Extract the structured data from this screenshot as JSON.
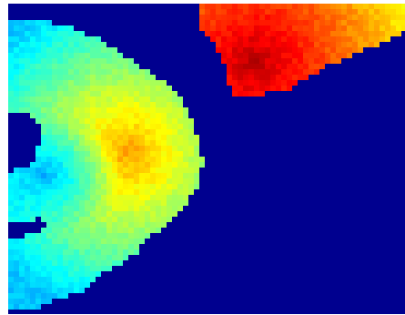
{
  "chart_data": {
    "type": "heatmap",
    "colormap": "jet",
    "background_color": "#00008f",
    "frame_color": "#ffffff",
    "value_range": [
      0,
      1
    ],
    "grid": false,
    "legend": "none",
    "title": "",
    "xlabel": "",
    "ylabel": "",
    "regions": [
      {
        "name": "left-lobe",
        "outline": [
          [
            0.0,
            0.06
          ],
          [
            0.06,
            0.05
          ],
          [
            0.15,
            0.07
          ],
          [
            0.24,
            0.12
          ],
          [
            0.31,
            0.18
          ],
          [
            0.38,
            0.24
          ],
          [
            0.43,
            0.29
          ],
          [
            0.46,
            0.36
          ],
          [
            0.48,
            0.44
          ],
          [
            0.49,
            0.51
          ],
          [
            0.48,
            0.58
          ],
          [
            0.45,
            0.65
          ],
          [
            0.4,
            0.71
          ],
          [
            0.35,
            0.76
          ],
          [
            0.32,
            0.81
          ],
          [
            0.25,
            0.86
          ],
          [
            0.18,
            0.93
          ],
          [
            0.07,
            0.98
          ],
          [
            0.0,
            0.99
          ]
        ],
        "holes": [
          [
            [
              0.0,
              0.35
            ],
            [
              0.05,
              0.36
            ],
            [
              0.09,
              0.4
            ],
            [
              0.08,
              0.45
            ],
            [
              0.06,
              0.52
            ],
            [
              0.0,
              0.54
            ]
          ],
          [
            [
              0.0,
              0.71
            ],
            [
              0.04,
              0.71
            ],
            [
              0.08,
              0.69
            ],
            [
              0.1,
              0.72
            ],
            [
              0.04,
              0.75
            ],
            [
              0.0,
              0.76
            ]
          ]
        ],
        "hot_spot": [
          0.3,
          0.48
        ],
        "value_low": 0.32,
        "value_high": 0.72,
        "cold_core": {
          "center": [
            0.09,
            0.55
          ],
          "radius": 0.2,
          "value": 0.3
        }
      },
      {
        "name": "upper-wedge",
        "outline": [
          [
            0.48,
            0.0
          ],
          [
            1.0,
            0.0
          ],
          [
            1.0,
            0.09
          ],
          [
            0.92,
            0.14
          ],
          [
            0.86,
            0.17
          ],
          [
            0.79,
            0.21
          ],
          [
            0.74,
            0.25
          ],
          [
            0.7,
            0.28
          ],
          [
            0.61,
            0.3
          ],
          [
            0.56,
            0.29
          ],
          [
            0.55,
            0.22
          ],
          [
            0.52,
            0.12
          ],
          [
            0.48,
            0.07
          ]
        ],
        "holes": [],
        "hot_spot": [
          0.62,
          0.19
        ],
        "value_low": 0.62,
        "value_high": 0.94,
        "cold_core": null
      }
    ]
  }
}
